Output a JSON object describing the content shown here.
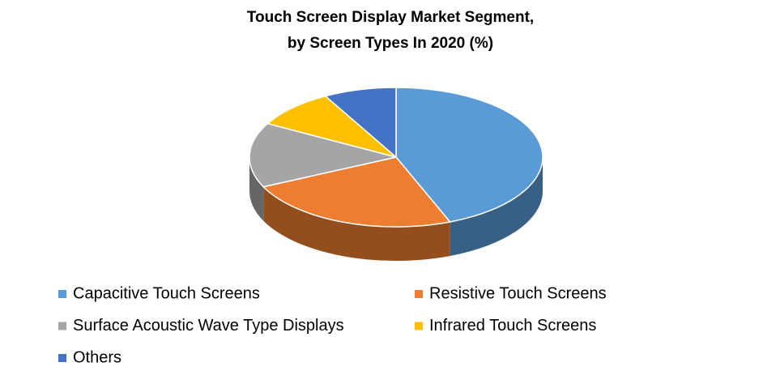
{
  "chart_data": {
    "type": "pie3d",
    "title": [
      "Touch Screen Display  Market Segment,",
      "by Screen Types In 2020 (%)"
    ],
    "categories": [
      "Capacitive Touch Screens",
      "Resistive Touch Screens",
      "Surface Acoustic Wave Type Displays",
      "Infrared Touch Screens",
      "Others"
    ],
    "values": [
      44,
      24,
      15,
      9,
      8
    ],
    "colors": [
      "#5b9bd5",
      "#ed7d31",
      "#a5a5a5",
      "#ffc000",
      "#4472c4"
    ]
  }
}
